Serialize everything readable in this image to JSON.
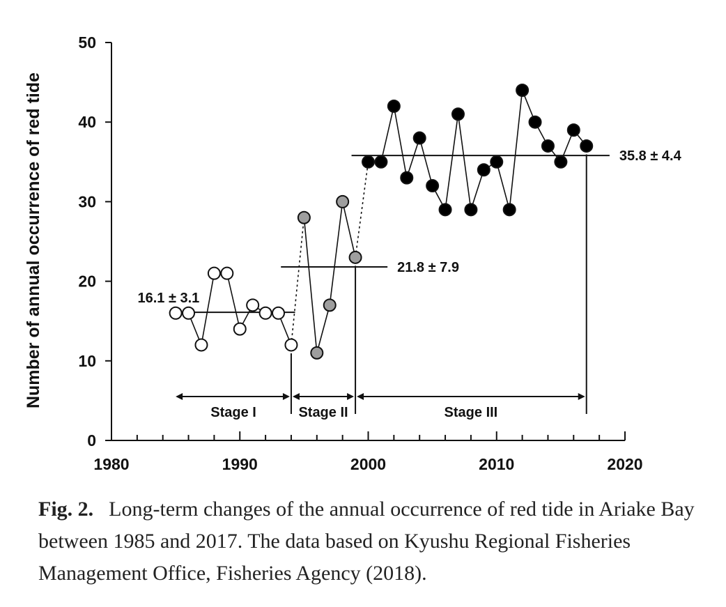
{
  "chart_data": {
    "type": "scatter",
    "title": "",
    "xlabel": "",
    "ylabel": "Number of annual occurrence of red tide",
    "xlim": [
      1980,
      2020
    ],
    "ylim": [
      0,
      50
    ],
    "x_ticks": [
      "1980",
      "1990",
      "2000",
      "2010",
      "2020"
    ],
    "y_ticks": [
      "0",
      "10",
      "20",
      "30",
      "40",
      "50"
    ],
    "grid": false,
    "series": [
      {
        "stage": "Stage I",
        "fill": "#ffffff",
        "x": [
          1985,
          1986,
          1987,
          1988,
          1989,
          1990,
          1991,
          1992,
          1993,
          1994
        ],
        "y": [
          16,
          16,
          12,
          21,
          21,
          14,
          17,
          16,
          16,
          12
        ]
      },
      {
        "stage": "Stage II",
        "fill": "#9e9e9e",
        "x": [
          1995,
          1996,
          1997,
          1998,
          1999
        ],
        "y": [
          28,
          11,
          17,
          30,
          23
        ]
      },
      {
        "stage": "Stage III",
        "fill": "#000000",
        "x": [
          2000,
          2001,
          2002,
          2003,
          2004,
          2005,
          2006,
          2007,
          2008,
          2009,
          2010,
          2011,
          2012,
          2013,
          2014,
          2015,
          2016,
          2017
        ],
        "y": [
          35,
          35,
          42,
          33,
          38,
          32,
          29,
          41,
          29,
          34,
          35,
          29,
          44,
          40,
          37,
          35,
          39,
          37
        ]
      }
    ],
    "means": [
      {
        "label": "16.1 ± 3.1",
        "value": 16.1,
        "x_start": 1984.5,
        "x_end": 1994.3
      },
      {
        "label": "21.8 ± 7.9",
        "value": 21.8,
        "x_start": 1993.2,
        "x_end": 2001.5
      },
      {
        "label": "35.8 ± 4.4",
        "value": 35.8,
        "x_start": 1998.7,
        "x_end": 2018.8
      }
    ],
    "stages": [
      {
        "label": "Stage I",
        "from": 1985,
        "to": 1994
      },
      {
        "label": "Stage II",
        "from": 1994,
        "to": 1999
      },
      {
        "label": "Stage III",
        "from": 1999,
        "to": 2017
      }
    ],
    "stage_boundaries": [
      1994,
      1999,
      2017
    ]
  },
  "caption": {
    "label": "Fig. 2.",
    "text": "Long-term changes of the annual occurrence of red tide in Ariake Bay between 1985 and 2017. The data based on Kyushu Regional Fisheries Management Office, Fisheries Agency (2018)."
  }
}
